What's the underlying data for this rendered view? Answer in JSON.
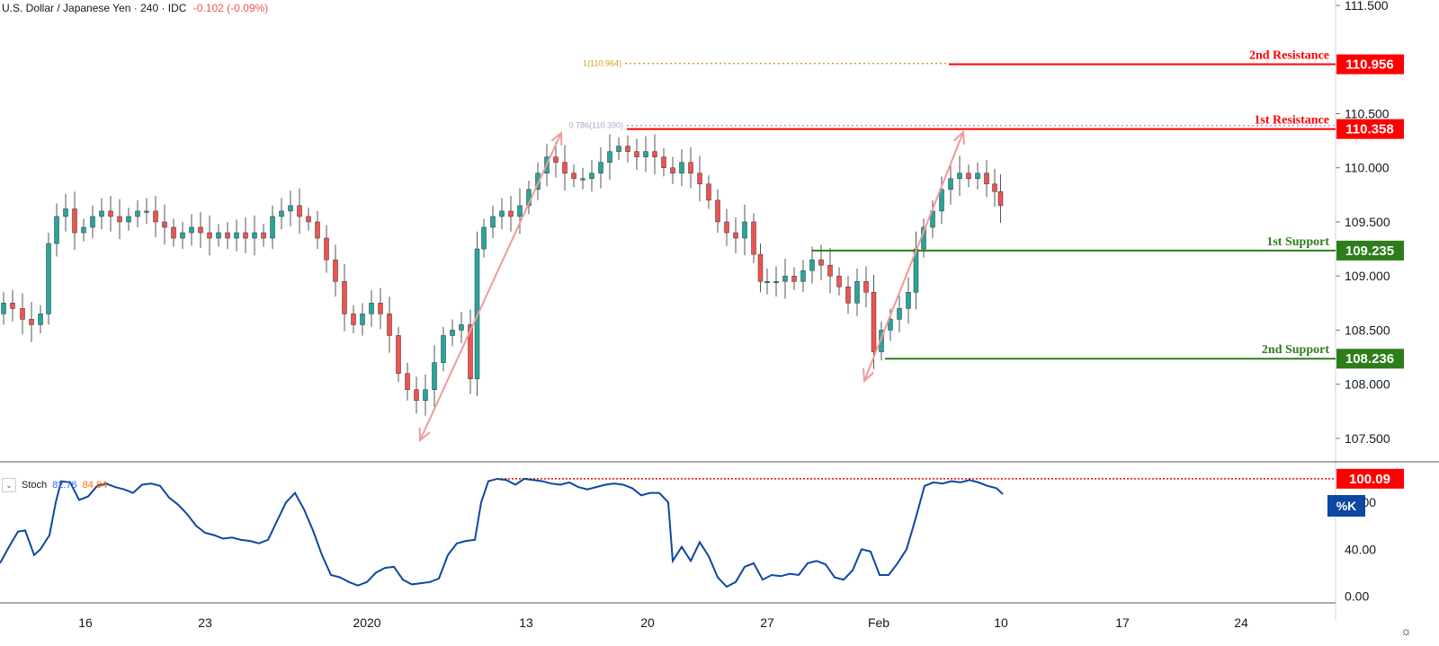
{
  "header": {
    "symbol": "U.S. Dollar / Japanese Yen · 240 · IDC",
    "change": "-0.102 (-0.09%)"
  },
  "stoch": {
    "label": "Stoch",
    "k_value": "82.76",
    "d_value": "84.84",
    "k_tag": "%K",
    "level_label": "100.09"
  },
  "chart_data": [
    {
      "type": "candlestick",
      "title": "",
      "xlabel": "",
      "ylabel": "",
      "x_ticks": [
        "16",
        "23",
        "2020",
        "13",
        "20",
        "27",
        "Feb",
        "10",
        "17",
        "24"
      ],
      "y_ticks": [
        "107.500",
        "108.000",
        "108.500",
        "109.000",
        "109.500",
        "110.000",
        "110.500",
        "111.500"
      ],
      "ylim": [
        107.3,
        111.55
      ],
      "grid": false,
      "levels": [
        {
          "name": "2nd Resistance",
          "value": 110.956,
          "label": "110.956",
          "color": "#ff0000"
        },
        {
          "name": "1st Resistance",
          "value": 110.358,
          "label": "110.358",
          "color": "#ff0000"
        },
        {
          "name": "1st Support",
          "value": 109.235,
          "label": "109.235",
          "color": "#2e7d1b"
        },
        {
          "name": "2nd Support",
          "value": 108.236,
          "label": "108.236",
          "color": "#2e7d1b"
        }
      ],
      "fib_levels": [
        {
          "label": "1(110.964)",
          "value": 110.964,
          "color": "#d4a017"
        },
        {
          "label": "0.786(110.390)",
          "value": 110.39,
          "color": "#b39ddb"
        }
      ],
      "arrows_color": "#f09a9a",
      "up_color": "#26a69a",
      "down_color": "#ef5350",
      "price_path": [
        [
          0,
          108.65
        ],
        [
          8,
          108.75
        ],
        [
          20,
          108.7
        ],
        [
          30,
          108.6
        ],
        [
          40,
          108.55
        ],
        [
          50,
          108.65
        ],
        [
          58,
          109.3
        ],
        [
          68,
          109.55
        ],
        [
          78,
          109.62
        ],
        [
          88,
          109.4
        ],
        [
          98,
          109.45
        ],
        [
          108,
          109.55
        ],
        [
          118,
          109.6
        ],
        [
          128,
          109.55
        ],
        [
          138,
          109.5
        ],
        [
          148,
          109.55
        ],
        [
          158,
          109.6
        ],
        [
          168,
          109.6
        ],
        [
          178,
          109.5
        ],
        [
          188,
          109.45
        ],
        [
          198,
          109.35
        ],
        [
          208,
          109.4
        ],
        [
          218,
          109.45
        ],
        [
          228,
          109.4
        ],
        [
          238,
          109.35
        ],
        [
          248,
          109.4
        ],
        [
          258,
          109.35
        ],
        [
          268,
          109.4
        ],
        [
          278,
          109.35
        ],
        [
          288,
          109.4
        ],
        [
          298,
          109.35
        ],
        [
          308,
          109.55
        ],
        [
          318,
          109.6
        ],
        [
          328,
          109.65
        ],
        [
          338,
          109.55
        ],
        [
          348,
          109.5
        ],
        [
          358,
          109.35
        ],
        [
          368,
          109.15
        ],
        [
          378,
          108.95
        ],
        [
          388,
          108.65
        ],
        [
          398,
          108.55
        ],
        [
          408,
          108.65
        ],
        [
          418,
          108.75
        ],
        [
          428,
          108.65
        ],
        [
          438,
          108.45
        ],
        [
          448,
          108.1
        ],
        [
          458,
          107.95
        ],
        [
          468,
          107.85
        ],
        [
          478,
          107.95
        ],
        [
          488,
          108.2
        ],
        [
          498,
          108.45
        ],
        [
          508,
          108.5
        ],
        [
          518,
          108.55
        ],
        [
          528,
          108.05
        ],
        [
          533,
          109.25
        ],
        [
          543,
          109.45
        ],
        [
          553,
          109.55
        ],
        [
          563,
          109.6
        ],
        [
          573,
          109.55
        ],
        [
          583,
          109.65
        ],
        [
          593,
          109.8
        ],
        [
          603,
          109.95
        ],
        [
          613,
          110.1
        ],
        [
          623,
          110.05
        ],
        [
          633,
          109.95
        ],
        [
          643,
          109.9
        ],
        [
          653,
          109.9
        ],
        [
          663,
          109.95
        ],
        [
          673,
          110.05
        ],
        [
          683,
          110.15
        ],
        [
          693,
          110.2
        ],
        [
          703,
          110.15
        ],
        [
          713,
          110.1
        ],
        [
          723,
          110.15
        ],
        [
          733,
          110.1
        ],
        [
          743,
          110.0
        ],
        [
          753,
          109.95
        ],
        [
          763,
          110.05
        ],
        [
          773,
          109.95
        ],
        [
          783,
          109.85
        ],
        [
          793,
          109.7
        ],
        [
          803,
          109.5
        ],
        [
          813,
          109.4
        ],
        [
          823,
          109.35
        ],
        [
          833,
          109.5
        ],
        [
          843,
          109.2
        ],
        [
          848,
          108.95
        ],
        [
          858,
          108.95
        ],
        [
          868,
          108.95
        ],
        [
          878,
          109.0
        ],
        [
          888,
          108.95
        ],
        [
          898,
          109.05
        ],
        [
          908,
          109.15
        ],
        [
          918,
          109.1
        ],
        [
          928,
          109.0
        ],
        [
          938,
          108.9
        ],
        [
          948,
          108.75
        ],
        [
          958,
          108.95
        ],
        [
          968,
          108.85
        ],
        [
          975,
          108.3
        ],
        [
          985,
          108.5
        ],
        [
          995,
          108.6
        ],
        [
          1005,
          108.7
        ],
        [
          1015,
          108.85
        ],
        [
          1022,
          109.25
        ],
        [
          1032,
          109.45
        ],
        [
          1042,
          109.6
        ],
        [
          1052,
          109.8
        ],
        [
          1062,
          109.9
        ],
        [
          1072,
          109.95
        ],
        [
          1082,
          109.9
        ],
        [
          1092,
          109.95
        ],
        [
          1102,
          109.85
        ],
        [
          1110,
          109.78
        ],
        [
          1115,
          109.65
        ]
      ]
    },
    {
      "type": "line",
      "title": "",
      "series": [
        {
          "name": "%K",
          "color": "#0d47a1"
        }
      ],
      "y_ticks": [
        "0.00",
        "40.00",
        "80.00"
      ],
      "ylim": [
        -5,
        113
      ],
      "grid": false,
      "level": {
        "value": 100.09,
        "color": "#ff0000"
      },
      "k_path": [
        [
          0,
          28
        ],
        [
          10,
          42
        ],
        [
          20,
          55
        ],
        [
          28,
          56
        ],
        [
          38,
          35
        ],
        [
          45,
          40
        ],
        [
          55,
          52
        ],
        [
          62,
          80
        ],
        [
          68,
          98
        ],
        [
          78,
          97
        ],
        [
          88,
          82
        ],
        [
          98,
          85
        ],
        [
          108,
          94
        ],
        [
          118,
          96
        ],
        [
          128,
          93
        ],
        [
          138,
          91
        ],
        [
          148,
          88
        ],
        [
          158,
          95
        ],
        [
          168,
          96
        ],
        [
          178,
          94
        ],
        [
          188,
          84
        ],
        [
          198,
          78
        ],
        [
          208,
          70
        ],
        [
          218,
          60
        ],
        [
          228,
          54
        ],
        [
          238,
          52
        ],
        [
          248,
          49
        ],
        [
          258,
          50
        ],
        [
          268,
          48
        ],
        [
          278,
          47
        ],
        [
          288,
          45
        ],
        [
          298,
          48
        ],
        [
          308,
          64
        ],
        [
          318,
          80
        ],
        [
          328,
          88
        ],
        [
          338,
          74
        ],
        [
          348,
          56
        ],
        [
          358,
          35
        ],
        [
          368,
          18
        ],
        [
          378,
          16
        ],
        [
          388,
          12
        ],
        [
          398,
          9
        ],
        [
          408,
          12
        ],
        [
          418,
          20
        ],
        [
          428,
          24
        ],
        [
          438,
          25
        ],
        [
          448,
          14
        ],
        [
          458,
          10
        ],
        [
          468,
          11
        ],
        [
          478,
          12
        ],
        [
          488,
          15
        ],
        [
          498,
          35
        ],
        [
          508,
          45
        ],
        [
          518,
          47
        ],
        [
          528,
          48
        ],
        [
          535,
          80
        ],
        [
          543,
          98
        ],
        [
          553,
          100
        ],
        [
          563,
          99
        ],
        [
          573,
          95
        ],
        [
          583,
          100
        ],
        [
          593,
          99
        ],
        [
          603,
          98
        ],
        [
          613,
          96
        ],
        [
          623,
          95
        ],
        [
          633,
          97
        ],
        [
          643,
          93
        ],
        [
          653,
          91
        ],
        [
          663,
          93
        ],
        [
          673,
          95
        ],
        [
          683,
          96
        ],
        [
          693,
          95
        ],
        [
          703,
          92
        ],
        [
          713,
          86
        ],
        [
          723,
          88
        ],
        [
          733,
          88
        ],
        [
          743,
          80
        ],
        [
          748,
          30
        ],
        [
          758,
          42
        ],
        [
          768,
          30
        ],
        [
          778,
          46
        ],
        [
          788,
          34
        ],
        [
          798,
          16
        ],
        [
          808,
          8
        ],
        [
          818,
          12
        ],
        [
          828,
          25
        ],
        [
          838,
          28
        ],
        [
          848,
          14
        ],
        [
          858,
          18
        ],
        [
          868,
          17
        ],
        [
          878,
          19
        ],
        [
          888,
          18
        ],
        [
          898,
          28
        ],
        [
          908,
          30
        ],
        [
          918,
          27
        ],
        [
          928,
          16
        ],
        [
          938,
          14
        ],
        [
          948,
          22
        ],
        [
          958,
          40
        ],
        [
          968,
          38
        ],
        [
          978,
          18
        ],
        [
          988,
          18
        ],
        [
          998,
          28
        ],
        [
          1008,
          40
        ],
        [
          1018,
          66
        ],
        [
          1028,
          94
        ],
        [
          1038,
          97
        ],
        [
          1048,
          96
        ],
        [
          1058,
          98
        ],
        [
          1068,
          97
        ],
        [
          1078,
          99
        ],
        [
          1088,
          97
        ],
        [
          1098,
          94
        ],
        [
          1108,
          92
        ],
        [
          1115,
          87
        ]
      ]
    }
  ]
}
